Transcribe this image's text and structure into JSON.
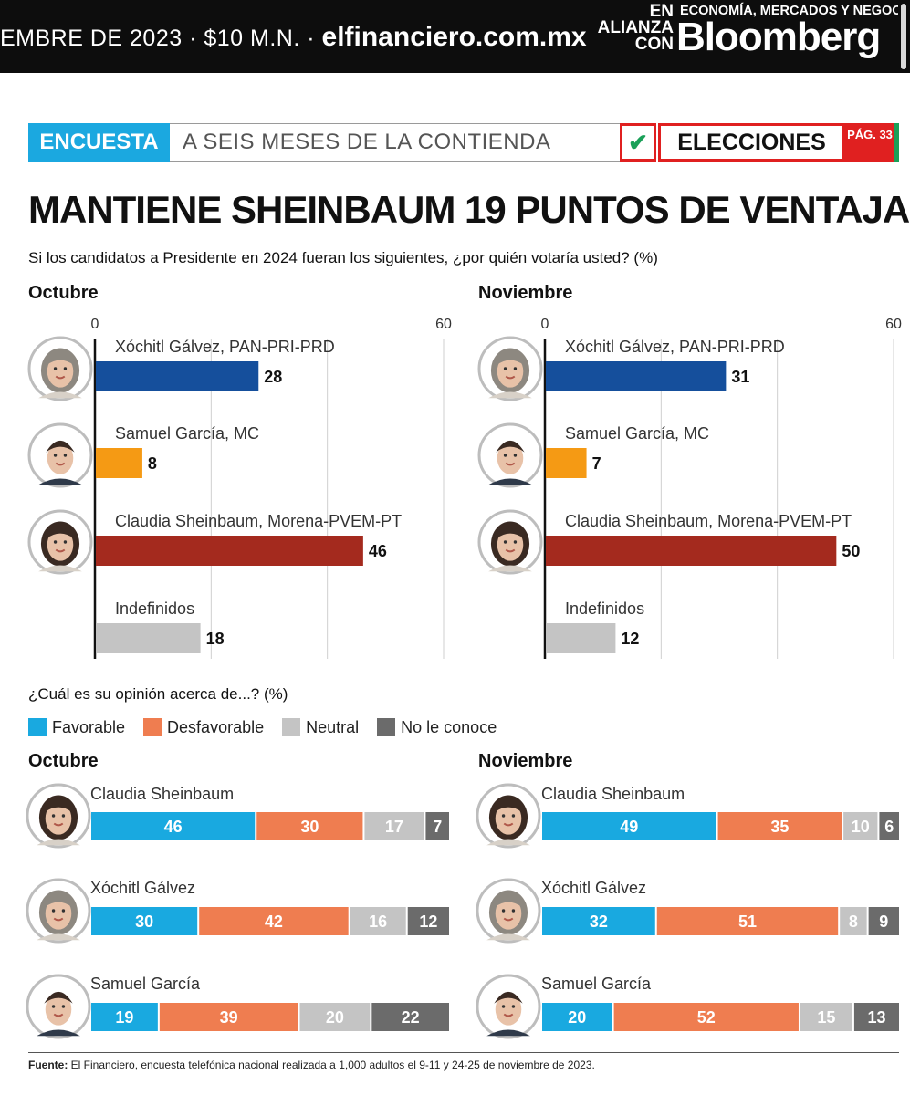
{
  "header": {
    "date_price": "EMBRE DE 2023 · $10 M.N. · ",
    "url": "elfinanciero.com.mx",
    "alliance": "EN ALIANZA CON",
    "tagline": "ECONOMÍA, MERCADOS Y NEGOCIOS",
    "brand": "Bloomberg"
  },
  "section": {
    "tag": "ENCUESTA",
    "subtitle": "A SEIS MESES DE LA CONTIENDA",
    "check_glyph": "✔",
    "elections": "ELECCIONES",
    "page_ref": "PÁG. 33"
  },
  "headline": "MANTIENE SHEINBAUM 19 PUNTOS DE VENTAJA",
  "question": "Si los candidatos a Presidente en 2024 fueran los siguientes, ¿por quién votaría usted?  (%)",
  "opinion_question": "¿Cuál es su opinión acerca de...? (%)",
  "months": {
    "oct": "Octubre",
    "nov": "Noviembre"
  },
  "legend": [
    {
      "label": "Favorable",
      "color": "#19a9e0"
    },
    {
      "label": "Desfavorable",
      "color": "#ef7d50"
    },
    {
      "label": "Neutral",
      "color": "#c4c4c4"
    },
    {
      "label": "No le conoce",
      "color": "#6b6b6b"
    }
  ],
  "colors": {
    "galvez": "#154f9c",
    "garcia": "#f59a14",
    "sheinbaum": "#a42a1e",
    "indefinidos": "#c4c4c4",
    "avatar_ring": "#bdbdbd"
  },
  "source": {
    "label": "Fuente:",
    "text": " El Financiero, encuesta telefónica nacional realizada a 1,000 adultos el 9-11 y 24-25 de noviembre de 2023."
  },
  "chart_data": [
    {
      "type": "bar",
      "orientation": "horizontal",
      "title": "Octubre",
      "xlim": [
        0,
        60
      ],
      "tick_labels": [
        "0",
        "60"
      ],
      "categories": [
        "Xóchitl Gálvez, PAN-PRI-PRD",
        "Samuel García, MC",
        "Claudia Sheinbaum, Morena-PVEM-PT",
        "Indefinidos"
      ],
      "values": [
        28,
        8,
        46,
        18
      ]
    },
    {
      "type": "bar",
      "orientation": "horizontal",
      "title": "Noviembre",
      "xlim": [
        0,
        60
      ],
      "tick_labels": [
        "0",
        "60"
      ],
      "categories": [
        "Xóchitl Gálvez, PAN-PRI-PRD",
        "Samuel García, MC",
        "Claudia Sheinbaum, Morena-PVEM-PT",
        "Indefinidos"
      ],
      "values": [
        31,
        7,
        50,
        12
      ]
    },
    {
      "type": "bar",
      "orientation": "horizontal",
      "stacked": true,
      "title": "Octubre",
      "categories": [
        "Claudia Sheinbaum",
        "Xóchitl Gálvez",
        "Samuel García"
      ],
      "series": [
        {
          "name": "Favorable",
          "values": [
            46,
            30,
            19
          ]
        },
        {
          "name": "Desfavorable",
          "values": [
            30,
            42,
            39
          ]
        },
        {
          "name": "Neutral",
          "values": [
            17,
            16,
            20
          ]
        },
        {
          "name": "No le conoce",
          "values": [
            7,
            12,
            22
          ]
        }
      ]
    },
    {
      "type": "bar",
      "orientation": "horizontal",
      "stacked": true,
      "title": "Noviembre",
      "categories": [
        "Claudia Sheinbaum",
        "Xóchitl Gálvez",
        "Samuel García"
      ],
      "series": [
        {
          "name": "Favorable",
          "values": [
            49,
            32,
            20
          ]
        },
        {
          "name": "Desfavorable",
          "values": [
            35,
            51,
            52
          ]
        },
        {
          "name": "Neutral",
          "values": [
            10,
            8,
            15
          ]
        },
        {
          "name": "No le conoce",
          "values": [
            6,
            9,
            13
          ]
        }
      ]
    }
  ]
}
